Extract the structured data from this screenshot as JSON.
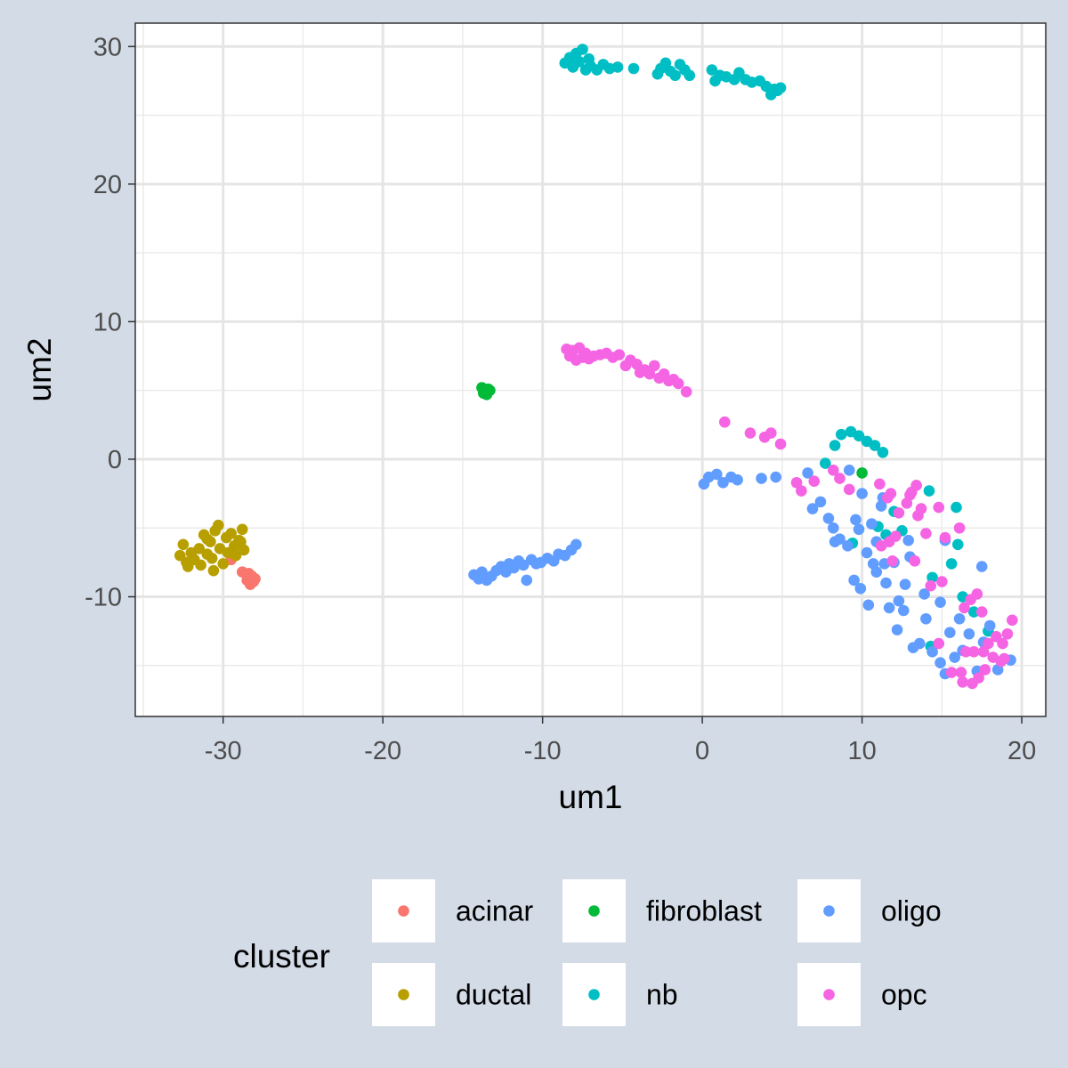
{
  "chart_data": {
    "type": "scatter",
    "title": "",
    "xlabel": "um1",
    "ylabel": "um2",
    "xlim": [
      -35.5,
      21.5
    ],
    "ylim": [
      -18.7,
      31.7
    ],
    "x_ticks": [
      -30,
      -20,
      -10,
      0,
      10,
      20
    ],
    "y_ticks": [
      -10,
      0,
      10,
      20,
      30
    ],
    "x_tick_labels": [
      "-30",
      "-20",
      "-10",
      "0",
      "10",
      "20"
    ],
    "y_tick_labels": [
      "-10",
      "0",
      "10",
      "20",
      "30"
    ],
    "grid": true,
    "legend": {
      "title": "cluster",
      "placement": "bottom"
    },
    "series": [
      {
        "name": "acinar",
        "color": "#f8766d",
        "points": [
          [
            -29.5,
            -7.3
          ],
          [
            -28.8,
            -8.2
          ],
          [
            -28.4,
            -8.3
          ],
          [
            -28.2,
            -8.5
          ],
          [
            -28.1,
            -8.9
          ],
          [
            -28.3,
            -9.1
          ],
          [
            -28.0,
            -8.7
          ],
          [
            -28.5,
            -8.8
          ]
        ]
      },
      {
        "name": "ductal",
        "color": "#b79f00",
        "points": [
          [
            -32.5,
            -6.2
          ],
          [
            -32.7,
            -7.0
          ],
          [
            -32.3,
            -7.5
          ],
          [
            -32.0,
            -6.8
          ],
          [
            -31.8,
            -7.3
          ],
          [
            -31.5,
            -6.5
          ],
          [
            -31.4,
            -7.7
          ],
          [
            -31.2,
            -5.5
          ],
          [
            -31.0,
            -6.9
          ],
          [
            -30.8,
            -6.0
          ],
          [
            -30.7,
            -7.2
          ],
          [
            -30.6,
            -8.1
          ],
          [
            -30.5,
            -5.2
          ],
          [
            -30.3,
            -4.8
          ],
          [
            -30.2,
            -6.5
          ],
          [
            -30.0,
            -7.6
          ],
          [
            -29.8,
            -5.7
          ],
          [
            -29.7,
            -6.8
          ],
          [
            -29.5,
            -5.4
          ],
          [
            -29.3,
            -6.3
          ],
          [
            -29.2,
            -7.0
          ],
          [
            -29.0,
            -5.9
          ],
          [
            -28.8,
            -5.1
          ],
          [
            -28.7,
            -6.6
          ],
          [
            -28.9,
            -6.0
          ],
          [
            -32.2,
            -7.8
          ],
          [
            -31.0,
            -5.8
          ]
        ]
      },
      {
        "name": "fibroblast",
        "color": "#00ba38",
        "points": [
          [
            -13.8,
            5.2
          ],
          [
            -13.6,
            5.0
          ],
          [
            -13.5,
            4.7
          ],
          [
            -13.4,
            5.1
          ],
          [
            -13.7,
            4.8
          ],
          [
            -13.3,
            5.0
          ],
          [
            10.0,
            -1.0
          ]
        ]
      },
      {
        "name": "nb",
        "color": "#00bfc4",
        "points": [
          [
            -8.6,
            28.8
          ],
          [
            -8.3,
            29.2
          ],
          [
            -8.1,
            28.5
          ],
          [
            -7.9,
            29.5
          ],
          [
            -7.7,
            28.9
          ],
          [
            -7.5,
            29.8
          ],
          [
            -7.3,
            28.3
          ],
          [
            -7.1,
            29.1
          ],
          [
            -7.0,
            28.6
          ],
          [
            -6.6,
            28.3
          ],
          [
            -6.2,
            28.7
          ],
          [
            -5.8,
            28.4
          ],
          [
            -5.3,
            28.5
          ],
          [
            -4.3,
            28.4
          ],
          [
            -2.8,
            28.0
          ],
          [
            -2.6,
            28.4
          ],
          [
            -2.3,
            28.8
          ],
          [
            -2.0,
            28.2
          ],
          [
            -1.7,
            27.9
          ],
          [
            -1.4,
            28.7
          ],
          [
            -1.1,
            28.3
          ],
          [
            -0.8,
            27.9
          ],
          [
            0.6,
            28.3
          ],
          [
            0.8,
            27.5
          ],
          [
            1.1,
            27.9
          ],
          [
            1.5,
            27.8
          ],
          [
            2.0,
            27.6
          ],
          [
            2.3,
            28.1
          ],
          [
            2.7,
            27.6
          ],
          [
            3.1,
            27.4
          ],
          [
            3.6,
            27.5
          ],
          [
            4.0,
            27.1
          ],
          [
            4.3,
            26.5
          ],
          [
            4.5,
            26.9
          ],
          [
            4.7,
            26.8
          ],
          [
            4.9,
            27.0
          ],
          [
            8.3,
            1.0
          ],
          [
            8.7,
            1.8
          ],
          [
            9.3,
            2.0
          ],
          [
            9.8,
            1.7
          ],
          [
            10.3,
            1.3
          ],
          [
            10.8,
            1.0
          ],
          [
            11.3,
            0.5
          ],
          [
            7.7,
            -0.3
          ],
          [
            12.0,
            -3.8
          ],
          [
            11.5,
            -5.5
          ],
          [
            12.5,
            -5.2
          ],
          [
            14.2,
            -2.3
          ],
          [
            15.9,
            -3.5
          ],
          [
            16.0,
            -6.2
          ],
          [
            15.6,
            -7.6
          ],
          [
            14.4,
            -8.6
          ],
          [
            16.3,
            -10.0
          ],
          [
            17.0,
            -11.1
          ],
          [
            17.9,
            -12.5
          ],
          [
            14.3,
            -13.6
          ],
          [
            9.4,
            -6.1
          ],
          [
            11.0,
            -4.9
          ]
        ]
      },
      {
        "name": "oligo",
        "color": "#619cff",
        "points": [
          [
            -14.3,
            -8.4
          ],
          [
            -14.0,
            -8.7
          ],
          [
            -13.8,
            -8.2
          ],
          [
            -13.5,
            -8.8
          ],
          [
            -13.2,
            -8.5
          ],
          [
            -12.9,
            -8.1
          ],
          [
            -12.6,
            -7.8
          ],
          [
            -12.3,
            -8.2
          ],
          [
            -12.1,
            -7.6
          ],
          [
            -11.8,
            -7.9
          ],
          [
            -11.5,
            -7.4
          ],
          [
            -11.2,
            -7.7
          ],
          [
            -11.0,
            -8.8
          ],
          [
            -10.7,
            -7.3
          ],
          [
            -10.4,
            -7.6
          ],
          [
            -10.1,
            -7.5
          ],
          [
            -9.7,
            -7.2
          ],
          [
            -9.3,
            -7.4
          ],
          [
            -9.0,
            -6.9
          ],
          [
            -8.6,
            -7.0
          ],
          [
            -8.2,
            -6.6
          ],
          [
            -7.9,
            -6.2
          ],
          [
            0.1,
            -1.8
          ],
          [
            0.4,
            -1.3
          ],
          [
            0.9,
            -1.1
          ],
          [
            1.3,
            -1.7
          ],
          [
            1.8,
            -1.3
          ],
          [
            2.2,
            -1.5
          ],
          [
            3.7,
            -1.4
          ],
          [
            4.6,
            -1.3
          ],
          [
            6.6,
            -1.0
          ],
          [
            6.9,
            -3.6
          ],
          [
            7.4,
            -3.1
          ],
          [
            7.9,
            -4.3
          ],
          [
            8.2,
            -5.0
          ],
          [
            8.6,
            -5.8
          ],
          [
            8.3,
            -6.0
          ],
          [
            9.1,
            -6.3
          ],
          [
            9.5,
            -8.8
          ],
          [
            9.9,
            -9.4
          ],
          [
            10.4,
            -10.6
          ],
          [
            10.7,
            -7.6
          ],
          [
            10.9,
            -6.0
          ],
          [
            11.2,
            -3.4
          ],
          [
            11.5,
            -9.0
          ],
          [
            11.7,
            -10.8
          ],
          [
            12.0,
            -7.5
          ],
          [
            12.3,
            -10.3
          ],
          [
            12.6,
            -11.0
          ],
          [
            12.9,
            -5.9
          ],
          [
            13.2,
            -13.7
          ],
          [
            13.6,
            -13.4
          ],
          [
            14.0,
            -11.6
          ],
          [
            14.4,
            -14.0
          ],
          [
            14.9,
            -14.8
          ],
          [
            15.2,
            -15.6
          ],
          [
            15.5,
            -12.6
          ],
          [
            15.8,
            -14.4
          ],
          [
            16.3,
            -13.9
          ],
          [
            16.7,
            -12.7
          ],
          [
            17.2,
            -15.4
          ],
          [
            17.6,
            -13.3
          ],
          [
            18.0,
            -12.1
          ],
          [
            18.5,
            -15.3
          ],
          [
            19.3,
            -14.6
          ],
          [
            17.5,
            -7.8
          ],
          [
            15.2,
            -5.9
          ],
          [
            10.6,
            -4.7
          ],
          [
            10.0,
            -2.5
          ],
          [
            9.8,
            -5.1
          ],
          [
            11.3,
            -2.8
          ],
          [
            12.7,
            -9.1
          ],
          [
            13.9,
            -9.8
          ],
          [
            14.9,
            -10.4
          ],
          [
            10.3,
            -6.8
          ],
          [
            11.4,
            -7.6
          ],
          [
            13.0,
            -7.1
          ],
          [
            12.2,
            -12.4
          ],
          [
            16.1,
            -11.6
          ],
          [
            10.9,
            -8.2
          ],
          [
            9.2,
            -0.8
          ],
          [
            9.6,
            -4.4
          ]
        ]
      },
      {
        "name": "opc",
        "color": "#f564e3",
        "points": [
          [
            -8.5,
            8.0
          ],
          [
            -8.3,
            7.5
          ],
          [
            -8.1,
            7.9
          ],
          [
            -7.9,
            7.2
          ],
          [
            -7.7,
            8.1
          ],
          [
            -7.5,
            7.4
          ],
          [
            -7.3,
            7.7
          ],
          [
            -7.1,
            7.3
          ],
          [
            -6.8,
            7.5
          ],
          [
            -6.4,
            7.6
          ],
          [
            -6.0,
            7.7
          ],
          [
            -5.6,
            7.4
          ],
          [
            -5.2,
            7.6
          ],
          [
            -4.8,
            6.8
          ],
          [
            -4.5,
            7.2
          ],
          [
            -4.1,
            6.9
          ],
          [
            -3.9,
            6.3
          ],
          [
            -3.6,
            6.5
          ],
          [
            -3.3,
            6.2
          ],
          [
            -3.0,
            6.8
          ],
          [
            -2.7,
            5.9
          ],
          [
            -2.4,
            6.2
          ],
          [
            -2.1,
            5.7
          ],
          [
            -1.8,
            5.8
          ],
          [
            -1.5,
            5.5
          ],
          [
            -1.0,
            4.9
          ],
          [
            1.4,
            2.7
          ],
          [
            3.0,
            1.9
          ],
          [
            3.9,
            1.6
          ],
          [
            4.3,
            1.9
          ],
          [
            4.9,
            1.1
          ],
          [
            5.9,
            -1.7
          ],
          [
            6.2,
            -2.3
          ],
          [
            7.0,
            -1.6
          ],
          [
            8.2,
            -0.8
          ],
          [
            8.6,
            -1.4
          ],
          [
            9.2,
            -2.2
          ],
          [
            11.1,
            -1.8
          ],
          [
            11.8,
            -2.5
          ],
          [
            12.3,
            -3.9
          ],
          [
            12.8,
            -3.2
          ],
          [
            13.1,
            -2.4
          ],
          [
            13.4,
            -1.9
          ],
          [
            13.7,
            -3.6
          ],
          [
            14.0,
            -5.4
          ],
          [
            13.5,
            -4.1
          ],
          [
            12.1,
            -5.6
          ],
          [
            11.7,
            -6.0
          ],
          [
            11.2,
            -6.3
          ],
          [
            11.9,
            -7.4
          ],
          [
            13.3,
            -7.4
          ],
          [
            14.8,
            -3.5
          ],
          [
            15.2,
            -5.7
          ],
          [
            16.1,
            -5.0
          ],
          [
            14.3,
            -9.2
          ],
          [
            15.0,
            -8.9
          ],
          [
            16.4,
            -10.8
          ],
          [
            16.8,
            -10.2
          ],
          [
            17.2,
            -9.8
          ],
          [
            17.5,
            -11.1
          ],
          [
            17.9,
            -13.4
          ],
          [
            18.4,
            -12.9
          ],
          [
            18.8,
            -13.4
          ],
          [
            19.1,
            -12.7
          ],
          [
            19.4,
            -11.7
          ],
          [
            18.7,
            -14.7
          ],
          [
            18.2,
            -14.4
          ],
          [
            17.6,
            -14.0
          ],
          [
            17.0,
            -14.0
          ],
          [
            16.5,
            -14.0
          ],
          [
            16.2,
            -15.5
          ],
          [
            16.9,
            -16.3
          ],
          [
            17.3,
            -15.9
          ],
          [
            16.3,
            -16.2
          ],
          [
            15.6,
            -15.5
          ],
          [
            14.8,
            -13.4
          ],
          [
            18.9,
            -14.5
          ],
          [
            17.7,
            -15.3
          ],
          [
            13.0,
            -2.6
          ],
          [
            11.6,
            -2.8
          ]
        ]
      }
    ]
  }
}
